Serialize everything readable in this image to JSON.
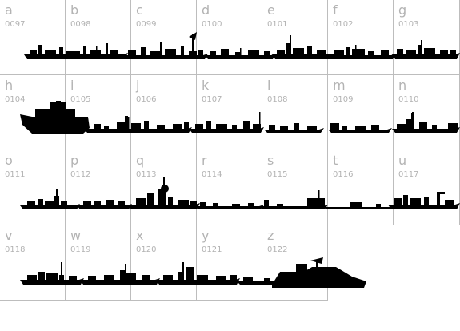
{
  "colors": {
    "glyph": "#000000",
    "label": "#b3b3b3",
    "grid": "#bdbdbd",
    "background": "#ffffff"
  },
  "glyphs": [
    {
      "letter": "a",
      "code": "0097"
    },
    {
      "letter": "b",
      "code": "0098"
    },
    {
      "letter": "c",
      "code": "0099"
    },
    {
      "letter": "d",
      "code": "0100"
    },
    {
      "letter": "e",
      "code": "0101"
    },
    {
      "letter": "f",
      "code": "0102"
    },
    {
      "letter": "g",
      "code": "0103"
    },
    {
      "letter": "h",
      "code": "0104"
    },
    {
      "letter": "i",
      "code": "0105"
    },
    {
      "letter": "j",
      "code": "0106"
    },
    {
      "letter": "k",
      "code": "0107"
    },
    {
      "letter": "l",
      "code": "0108"
    },
    {
      "letter": "m",
      "code": "0109"
    },
    {
      "letter": "n",
      "code": "0110"
    },
    {
      "letter": "o",
      "code": "0111"
    },
    {
      "letter": "p",
      "code": "0112"
    },
    {
      "letter": "q",
      "code": "0113"
    },
    {
      "letter": "r",
      "code": "0114"
    },
    {
      "letter": "s",
      "code": "0115"
    },
    {
      "letter": "t",
      "code": "0116"
    },
    {
      "letter": "u",
      "code": "0117"
    },
    {
      "letter": "v",
      "code": "0118"
    },
    {
      "letter": "w",
      "code": "0119"
    },
    {
      "letter": "x",
      "code": "0120"
    },
    {
      "letter": "y",
      "code": "0121"
    },
    {
      "letter": "z",
      "code": "0122"
    }
  ]
}
